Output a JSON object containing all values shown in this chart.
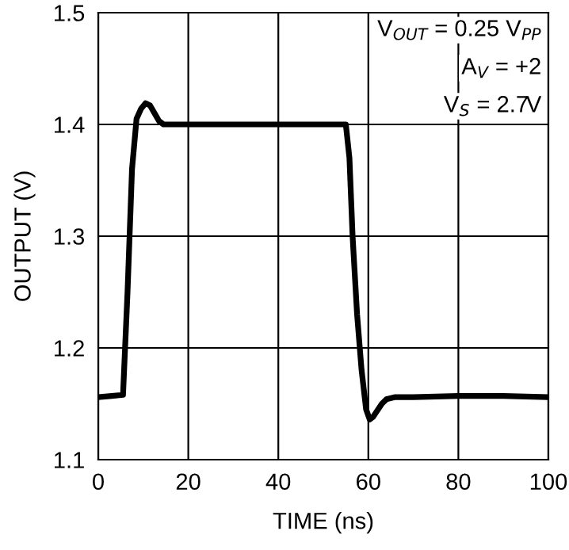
{
  "chart_data": {
    "type": "line",
    "xlabel": "TIME (ns)",
    "ylabel": "OUTPUT (V)",
    "xlim": [
      0,
      100
    ],
    "ylim": [
      1.1,
      1.5
    ],
    "xticks": [
      0,
      20,
      40,
      60,
      80,
      100
    ],
    "yticks": [
      {
        "value": 1.1,
        "label": "1.1"
      },
      {
        "value": 1.2,
        "label": "1.2"
      },
      {
        "value": 1.3,
        "label": "1.3"
      },
      {
        "value": 1.4,
        "label": "1.4"
      },
      {
        "value": 1.5,
        "label": "1.5"
      }
    ],
    "grid": true,
    "marker": "none",
    "line_style": "solid",
    "annotations": [
      "V$_{OUT}$ = 0.25 V$_{PP}$",
      "A$_{V}$ = +2",
      "V$_{S}$ = 2.7V"
    ],
    "series": [
      {
        "color": "#000000",
        "x": [
          0,
          3,
          5.5,
          6.5,
          7.5,
          8.5,
          9.5,
          10.5,
          11.5,
          12.5,
          13.5,
          14.5,
          16,
          20,
          30,
          40,
          50,
          55,
          55.8,
          56.5,
          57.5,
          58.5,
          59.5,
          60.3,
          61,
          62,
          63,
          64,
          66,
          70,
          80,
          90,
          100
        ],
        "values": [
          1.156,
          1.157,
          1.158,
          1.25,
          1.36,
          1.405,
          1.414,
          1.419,
          1.417,
          1.41,
          1.403,
          1.4,
          1.4,
          1.4,
          1.4,
          1.4,
          1.4,
          1.4,
          1.37,
          1.3,
          1.23,
          1.18,
          1.145,
          1.136,
          1.138,
          1.144,
          1.15,
          1.154,
          1.156,
          1.156,
          1.157,
          1.157,
          1.156
        ]
      }
    ]
  }
}
